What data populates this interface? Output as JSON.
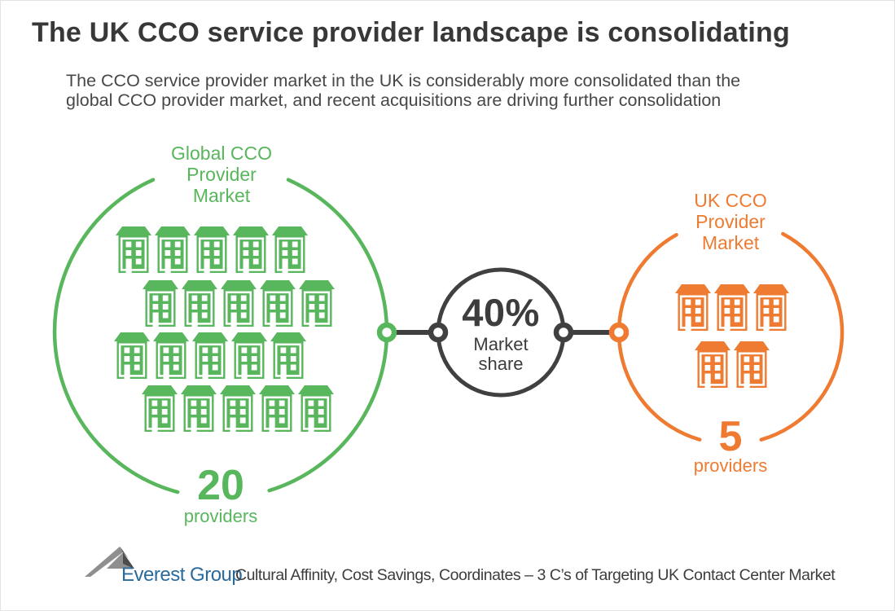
{
  "title": "The UK CCO service provider landscape is consolidating",
  "subtitle_lines": [
    "The CCO service provider market in the UK is considerably more consolidated than the",
    "global CCO provider market, and recent acquisitions are driving further consolidation"
  ],
  "colors": {
    "green": "#58b65c",
    "orange": "#ee7b31",
    "dark": "#404040",
    "logo_blue": "#2b6b9c",
    "logo_gray": "#8f8f8f",
    "logo_dark": "#4c4c4c"
  },
  "global_market": {
    "label": "Global CCO Provider Market",
    "count": "20",
    "count_unit": "providers",
    "building_rows": [
      5,
      5,
      5,
      5
    ]
  },
  "uk_market": {
    "label": "UK CCO Provider Market",
    "count": "5",
    "count_unit": "providers",
    "building_rows": [
      3,
      2
    ]
  },
  "market_share": {
    "value": "40%",
    "label": "Market share"
  },
  "footer": {
    "logo_text": "Everest Group",
    "caption": "Cultural Affinity, Cost Savings, Coordinates – 3 C’s of Targeting UK Contact Center Market"
  }
}
